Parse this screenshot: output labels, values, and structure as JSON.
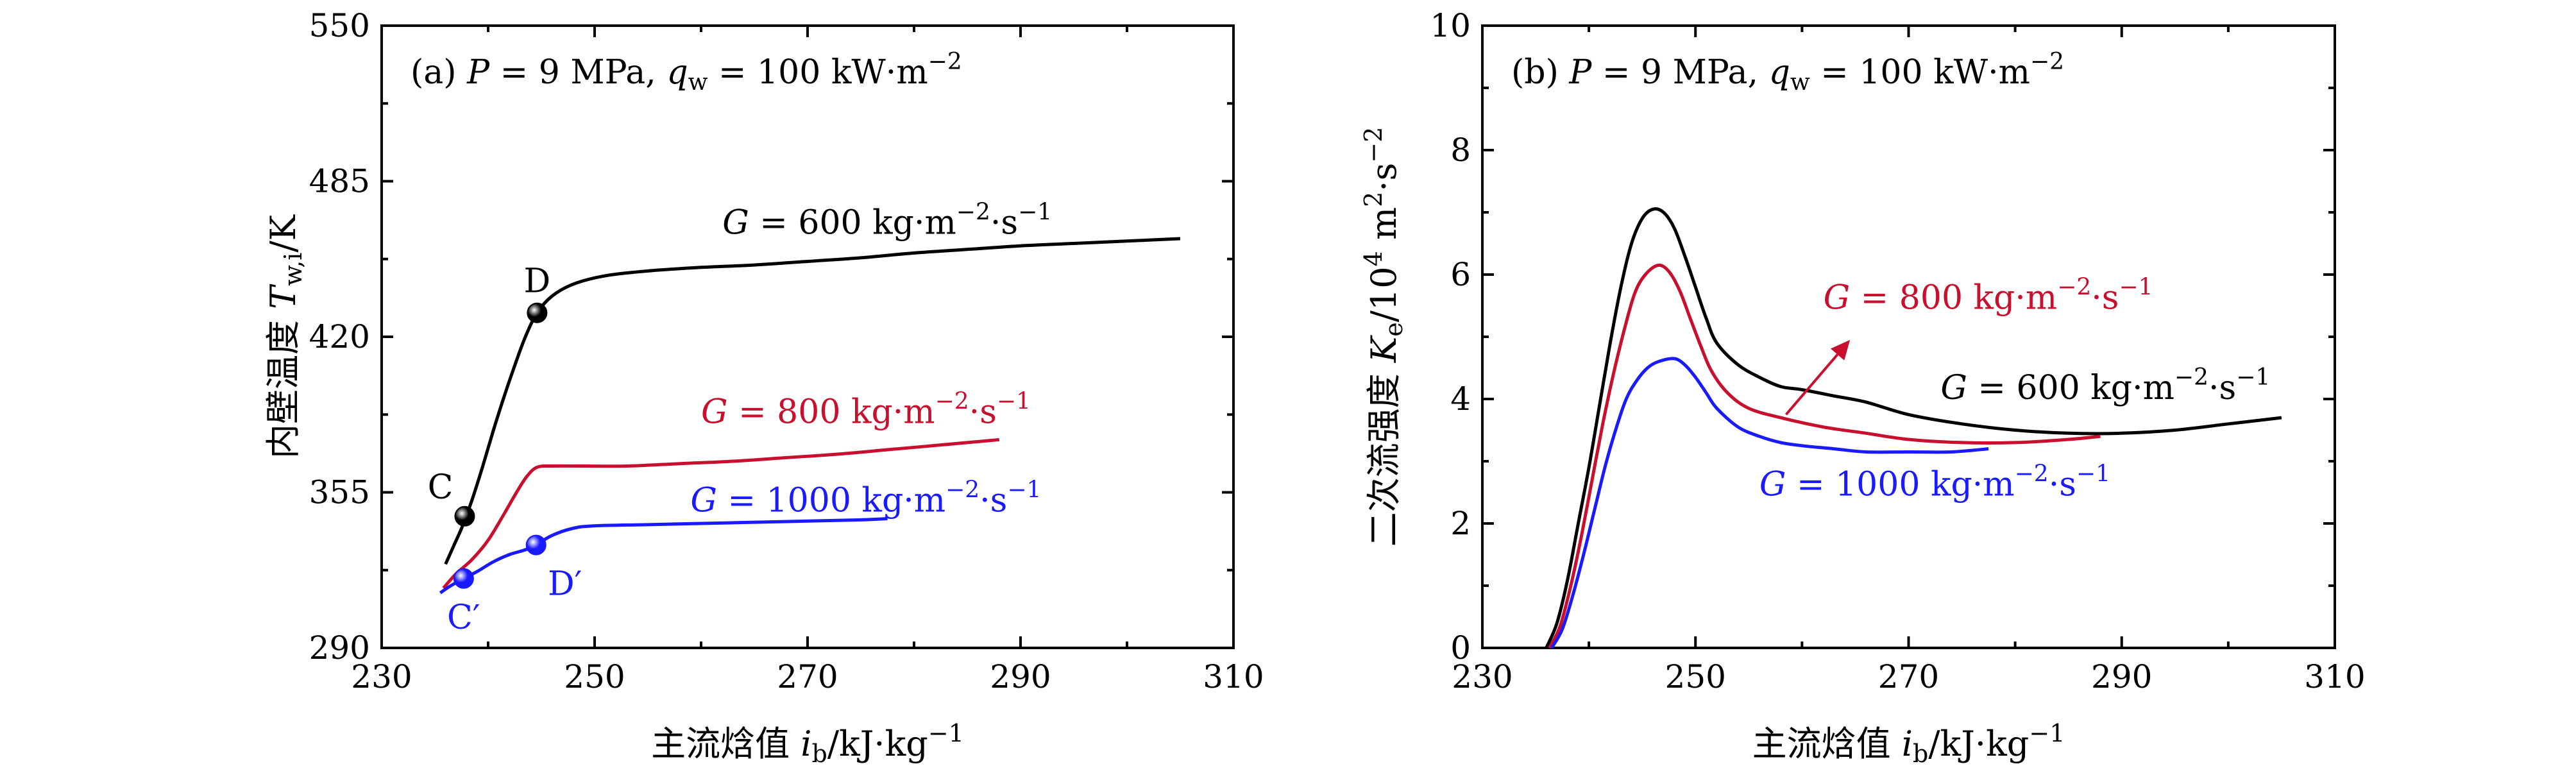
{
  "chart_data": [
    {
      "type": "line",
      "panel": "(a)",
      "title": "(a) P = 9 MPa, q_w = 100 kW·m⁻²",
      "title_parts": {
        "panel": "(a)",
        "P": "P",
        "eq1": " = 9 MPa, ",
        "q": "q",
        "q_sub": "w",
        "eq2": " = 100 kW·m",
        "q_sup": "−2"
      },
      "xlabel": "主流焓值 i_b/kJ·kg⁻¹",
      "xlabel_parts": {
        "cn": "主流焓值 ",
        "sym": "i",
        "sub": "b",
        "unit": "/kJ·kg",
        "sup": "−1"
      },
      "ylabel": "内壁温度 T_w,i/K",
      "ylabel_parts": {
        "cn": "内壁温度 ",
        "sym": "T",
        "sub": "w,i",
        "unit": "/K"
      },
      "xlim": [
        230,
        310
      ],
      "ylim": [
        290,
        550
      ],
      "xticks": [
        230,
        250,
        270,
        290,
        310
      ],
      "yticks": [
        290,
        355,
        420,
        485,
        550
      ],
      "grid": false,
      "series": [
        {
          "name": "G = 600 kg·m⁻²·s⁻¹",
          "label_parts": {
            "sym": "G",
            "eq": " = 600 kg·m",
            "sup1": "−2",
            "mid": "·s",
            "sup2": "−1"
          },
          "color": "#000000",
          "points": [
            [
              236.0,
              325
            ],
            [
              236.8,
              333
            ],
            [
              237.6,
              341
            ],
            [
              238.5,
              352
            ],
            [
              239.5,
              366
            ],
            [
              240.5,
              381
            ],
            [
              241.5,
              395
            ],
            [
              242.5,
              408
            ],
            [
              243.5,
              420
            ],
            [
              244.6,
              430
            ],
            [
              246,
              437
            ],
            [
              248,
              442
            ],
            [
              251,
              445.5
            ],
            [
              255,
              447.5
            ],
            [
              260,
              449
            ],
            [
              265,
              450
            ],
            [
              270,
              451.5
            ],
            [
              275,
              453
            ],
            [
              280,
              455
            ],
            [
              285,
              456.5
            ],
            [
              290,
              458
            ],
            [
              295,
              459
            ],
            [
              300,
              460
            ],
            [
              305,
              461
            ]
          ]
        },
        {
          "name": "G = 800 kg·m⁻²·s⁻¹",
          "label_parts": {
            "sym": "G",
            "eq": " = 800 kg·m",
            "sup1": "−2",
            "mid": "·s",
            "sup2": "−1"
          },
          "color": "#c8102e",
          "points": [
            [
              235.8,
              315
            ],
            [
              237,
              321
            ],
            [
              238.5,
              327
            ],
            [
              240,
              335
            ],
            [
              241.5,
              346
            ],
            [
              242.8,
              356
            ],
            [
              243.7,
              362
            ],
            [
              244.6,
              365.5
            ],
            [
              246,
              366
            ],
            [
              249,
              366
            ],
            [
              253,
              366
            ],
            [
              258,
              367
            ],
            [
              263,
              368
            ],
            [
              268,
              369.5
            ],
            [
              273,
              371
            ],
            [
              278,
              373
            ],
            [
              283,
              375
            ],
            [
              288,
              377
            ]
          ]
        },
        {
          "name": "G = 1000 kg·m⁻²·s⁻¹",
          "label_parts": {
            "sym": "G",
            "eq": " = 1000 kg·m",
            "sup1": "−2",
            "mid": "·s",
            "sup2": "−1"
          },
          "color": "#1a1aff",
          "points": [
            [
              235.5,
              313
            ],
            [
              236.5,
              316
            ],
            [
              237.7,
              319
            ],
            [
              239,
              322
            ],
            [
              240.5,
              326
            ],
            [
              242,
              329
            ],
            [
              243.5,
              331
            ],
            [
              244.5,
              333
            ],
            [
              246,
              337
            ],
            [
              248,
              340
            ],
            [
              250,
              341
            ],
            [
              255,
              341.5
            ],
            [
              260,
              342
            ],
            [
              265,
              342.5
            ],
            [
              270,
              343
            ],
            [
              275,
              343.5
            ],
            [
              277.5,
              344
            ]
          ]
        }
      ],
      "markers": [
        {
          "label": "C",
          "x": 237.8,
          "y": 345,
          "color": "#000000",
          "label_color": "#000000",
          "label_anchor": "left"
        },
        {
          "label": "D",
          "x": 244.6,
          "y": 430,
          "color": "#000000",
          "label_color": "#000000",
          "label_anchor": "top"
        },
        {
          "label": "C′",
          "x": 237.7,
          "y": 319,
          "color": "#1a1aff",
          "label_color": "#1a1aff",
          "label_anchor": "bottom"
        },
        {
          "label": "D′",
          "x": 244.5,
          "y": 333,
          "color": "#1a1aff",
          "label_color": "#1a1aff",
          "label_anchor": "bottom-right"
        }
      ],
      "annotations": [
        {
          "series": 0,
          "x": 262,
          "y": 463,
          "color": "#000000"
        },
        {
          "series": 1,
          "x": 260,
          "y": 384,
          "color": "#c8102e"
        },
        {
          "series": 2,
          "x": 259,
          "y": 347,
          "color": "#1a1aff"
        }
      ]
    },
    {
      "type": "line",
      "panel": "(b)",
      "title": "(b) P = 9 MPa, q_w = 100 kW·m⁻²",
      "title_parts": {
        "panel": "(b)",
        "P": "P",
        "eq1": " = 9 MPa, ",
        "q": "q",
        "q_sub": "w",
        "eq2": " = 100 kW·m",
        "q_sup": "−2"
      },
      "xlabel": "主流焓值 i_b/kJ·kg⁻¹",
      "xlabel_parts": {
        "cn": "主流焓值 ",
        "sym": "i",
        "sub": "b",
        "unit": "/kJ·kg",
        "sup": "−1"
      },
      "ylabel": "二次流强度 K_e/10⁴ m²·s⁻²",
      "ylabel_parts": {
        "cn": "二次流强度 ",
        "sym": "K",
        "sub": "e",
        "unit": "/10",
        "sup1": "4",
        "unit2": " m",
        "sup2": "2",
        "unit3": "·s",
        "sup3": "−2"
      },
      "xlim": [
        230,
        310
      ],
      "ylim": [
        0,
        10
      ],
      "xticks": [
        230,
        250,
        270,
        290,
        310
      ],
      "yticks": [
        0,
        2,
        4,
        6,
        8,
        10
      ],
      "grid": false,
      "series": [
        {
          "name": "G = 600 kg·m⁻²·s⁻¹",
          "label_parts": {
            "sym": "G",
            "eq": " = 600 kg·m",
            "sup1": "−2",
            "mid": "·s",
            "sup2": "−1"
          },
          "color": "#000000",
          "points": [
            [
              236.0,
              0.0
            ],
            [
              237,
              0.4
            ],
            [
              238,
              1.1
            ],
            [
              239,
              2.0
            ],
            [
              240,
              2.9
            ],
            [
              241,
              3.9
            ],
            [
              242,
              4.9
            ],
            [
              243,
              5.8
            ],
            [
              244,
              6.5
            ],
            [
              245,
              6.9
            ],
            [
              246,
              7.05
            ],
            [
              247,
              7.0
            ],
            [
              248,
              6.75
            ],
            [
              249,
              6.3
            ],
            [
              250,
              5.8
            ],
            [
              251,
              5.3
            ],
            [
              252,
              4.9
            ],
            [
              254,
              4.55
            ],
            [
              256,
              4.35
            ],
            [
              258,
              4.2
            ],
            [
              260,
              4.15
            ],
            [
              263,
              4.05
            ],
            [
              266,
              3.95
            ],
            [
              270,
              3.75
            ],
            [
              275,
              3.6
            ],
            [
              280,
              3.5
            ],
            [
              285,
              3.45
            ],
            [
              290,
              3.45
            ],
            [
              295,
              3.5
            ],
            [
              300,
              3.6
            ],
            [
              305,
              3.7
            ]
          ]
        },
        {
          "name": "G = 800 kg·m⁻²·s⁻¹",
          "label_parts": {
            "sym": "G",
            "eq": " = 800 kg·m",
            "sup1": "−2",
            "mid": "·s",
            "sup2": "−1"
          },
          "color": "#c8102e",
          "points": [
            [
              236.3,
              0.0
            ],
            [
              237.3,
              0.35
            ],
            [
              238.3,
              1.0
            ],
            [
              239.3,
              1.8
            ],
            [
              240.3,
              2.7
            ],
            [
              241.3,
              3.6
            ],
            [
              242.3,
              4.4
            ],
            [
              243.3,
              5.1
            ],
            [
              244.3,
              5.7
            ],
            [
              245.3,
              6.0
            ],
            [
              246.5,
              6.15
            ],
            [
              247.5,
              6.05
            ],
            [
              248.5,
              5.75
            ],
            [
              249.5,
              5.3
            ],
            [
              250.5,
              4.85
            ],
            [
              251.5,
              4.45
            ],
            [
              253,
              4.1
            ],
            [
              255,
              3.85
            ],
            [
              258,
              3.7
            ],
            [
              262,
              3.55
            ],
            [
              266,
              3.45
            ],
            [
              270,
              3.35
            ],
            [
              275,
              3.3
            ],
            [
              280,
              3.3
            ],
            [
              285,
              3.35
            ],
            [
              288,
              3.4
            ]
          ]
        },
        {
          "name": "G = 1000 kg·m⁻²·s⁻¹",
          "label_parts": {
            "sym": "G",
            "eq": " = 1000 kg·m",
            "sup1": "−2",
            "mid": "·s",
            "sup2": "−1"
          },
          "color": "#1a1aff",
          "points": [
            [
              236.5,
              0.0
            ],
            [
              237.5,
              0.3
            ],
            [
              238.5,
              0.85
            ],
            [
              239.5,
              1.5
            ],
            [
              240.5,
              2.2
            ],
            [
              241.5,
              2.9
            ],
            [
              242.5,
              3.5
            ],
            [
              243.5,
              4.0
            ],
            [
              244.5,
              4.3
            ],
            [
              245.5,
              4.5
            ],
            [
              246.5,
              4.6
            ],
            [
              248,
              4.65
            ],
            [
              249,
              4.55
            ],
            [
              250,
              4.35
            ],
            [
              251,
              4.1
            ],
            [
              252,
              3.85
            ],
            [
              254,
              3.55
            ],
            [
              256,
              3.4
            ],
            [
              258,
              3.3
            ],
            [
              260,
              3.25
            ],
            [
              263,
              3.2
            ],
            [
              266,
              3.15
            ],
            [
              270,
              3.15
            ],
            [
              274,
              3.15
            ],
            [
              277.5,
              3.2
            ]
          ]
        }
      ],
      "markers": [],
      "annotations": [
        {
          "series": 0,
          "x": 273,
          "y": 4.0,
          "color": "#000000"
        },
        {
          "series": 1,
          "x": 262,
          "y": 5.45,
          "color": "#c8102e"
        },
        {
          "series": 2,
          "x": 256,
          "y": 2.45,
          "color": "#1a1aff"
        }
      ],
      "arrow": {
        "from": [
          258.5,
          3.75
        ],
        "to": [
          264.5,
          4.95
        ],
        "color": "#c8102e"
      }
    }
  ]
}
